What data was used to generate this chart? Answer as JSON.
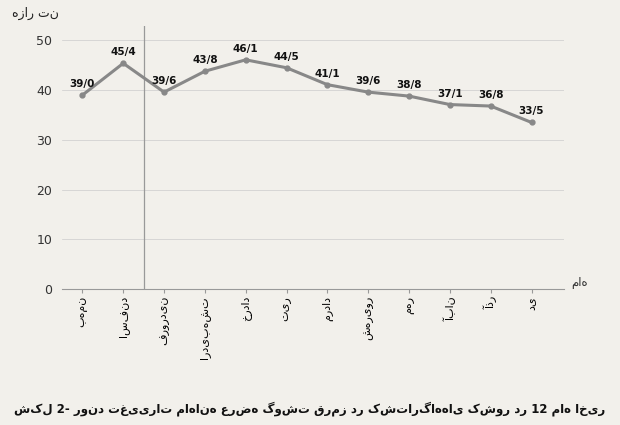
{
  "values": [
    39.0,
    45.4,
    39.6,
    43.8,
    46.1,
    44.5,
    41.1,
    39.6,
    38.8,
    37.1,
    36.8,
    33.5
  ],
  "labels_display": [
    "بهمن",
    "اسفند",
    "فروردین",
    "اردیبهشت",
    "خرداد",
    "تیر",
    "مرداد",
    "شهریور",
    "مهر",
    "آبان",
    "آذر",
    "دی"
  ],
  "data_labels": [
    "39/0",
    "45/4",
    "39/6",
    "43/8",
    "46/1",
    "44/5",
    "41/1",
    "39/6",
    "38/8",
    "37/1",
    "36/8",
    "33/5"
  ],
  "ylabel": "هزار تن",
  "xlabel_label": "ماه",
  "caption": "شکل 2- روند تغییرات ماهانه عرضه گوشت قرمز در کشتارگاههای کشور در 12 ماه اخیر",
  "line_color": "#888888",
  "bg_color": "#f2f0eb",
  "ytick_labels": [
    "0",
    "10",
    "20",
    "30",
    "40",
    "50"
  ],
  "yticks": [
    0,
    10,
    20,
    30,
    40,
    50
  ],
  "ylim": [
    0,
    53
  ],
  "xlim": [
    -0.5,
    11.8
  ],
  "line_width": 2.2,
  "label_offsets": [
    1.2,
    1.2,
    1.2,
    1.2,
    1.2,
    1.2,
    1.2,
    1.2,
    1.2,
    1.2,
    1.2,
    1.2
  ]
}
